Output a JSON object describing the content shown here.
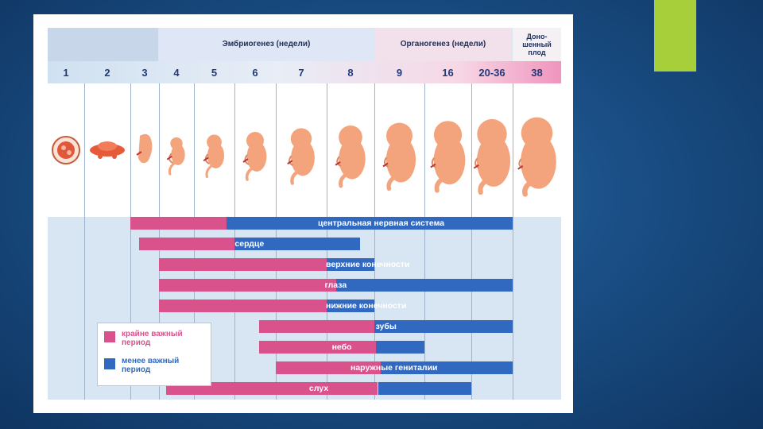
{
  "colors": {
    "critical": "#d9528c",
    "less_critical": "#3169c1",
    "accent": "#a7cf3a",
    "skin": "#f4a47c"
  },
  "header": {
    "embryogenesis": "Эмбриогенез (недели)",
    "organogenesis": "Органогенез (недели)",
    "full_term": "Доно-\nшенный\nплод"
  },
  "weeks": [
    "1",
    "2",
    "3",
    "4",
    "5",
    "6",
    "7",
    "8",
    "9",
    "16",
    "20-36",
    "38"
  ],
  "organs": [
    {
      "label": "центральная нервная система",
      "critical_from": 3,
      "critical_to": 5.8,
      "less_from": 5.8,
      "less_to": 38
    },
    {
      "label": "сердце",
      "critical_from": 3.3,
      "critical_to": 6,
      "less_from": 6,
      "less_to": 8.7
    },
    {
      "label": "верхние конечности",
      "critical_from": 4,
      "critical_to": 8,
      "less_from": 8,
      "less_to": 9
    },
    {
      "label": "глаза",
      "critical_from": 4,
      "critical_to": 8.2,
      "less_from": 8.2,
      "less_to": 38
    },
    {
      "label": "нижние конечности",
      "critical_from": 4,
      "critical_to": 8,
      "less_from": 8,
      "less_to": 9
    },
    {
      "label": "зубы",
      "critical_from": 6.6,
      "critical_to": 9,
      "less_from": 9,
      "less_to": 38
    },
    {
      "label": "небо",
      "critical_from": 6.6,
      "critical_to": 9.2,
      "less_from": 9.2,
      "less_to": 16
    },
    {
      "label": "наружные гениталии",
      "critical_from": 7,
      "critical_to": 9.9,
      "less_from": 9.9,
      "less_to": 38
    },
    {
      "label": "слух",
      "critical_from": 4.2,
      "critical_to": 9.5,
      "less_from": 9.5,
      "less_to": 20.1
    }
  ],
  "legend": {
    "critical": "крайне важный период",
    "less_critical": "менее важный период"
  }
}
